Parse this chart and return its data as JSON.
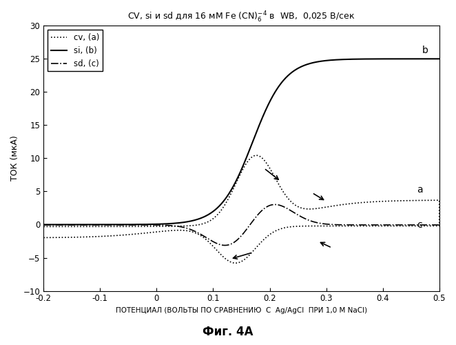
{
  "title": "CV, si и sd для 16 мМ Fe (CN)$_6^{-4}$ в  WB,  0,025 В/сек",
  "xlabel": "ПОТЕНЦИАЛ (ВОЛЬТЫ ПО СРАВНЕНИЮ  С  Ag/AgCl  ПРИ 1,0 М NaCl)",
  "ylabel": "ТОК (мкА)",
  "caption": "Фиг. 4А",
  "xlim": [
    -0.2,
    0.5
  ],
  "ylim": [
    -10,
    30
  ],
  "xticks": [
    -0.2,
    -0.1,
    0.0,
    0.1,
    0.2,
    0.3,
    0.4,
    0.5
  ],
  "yticks": [
    -10,
    -5,
    0,
    5,
    10,
    15,
    20,
    25,
    30
  ],
  "legend_labels": [
    "cv, (a)",
    "si, (b)",
    "sd, (c)"
  ],
  "label_a": "a",
  "label_b": "b",
  "label_c": "c",
  "background_color": "#ffffff"
}
